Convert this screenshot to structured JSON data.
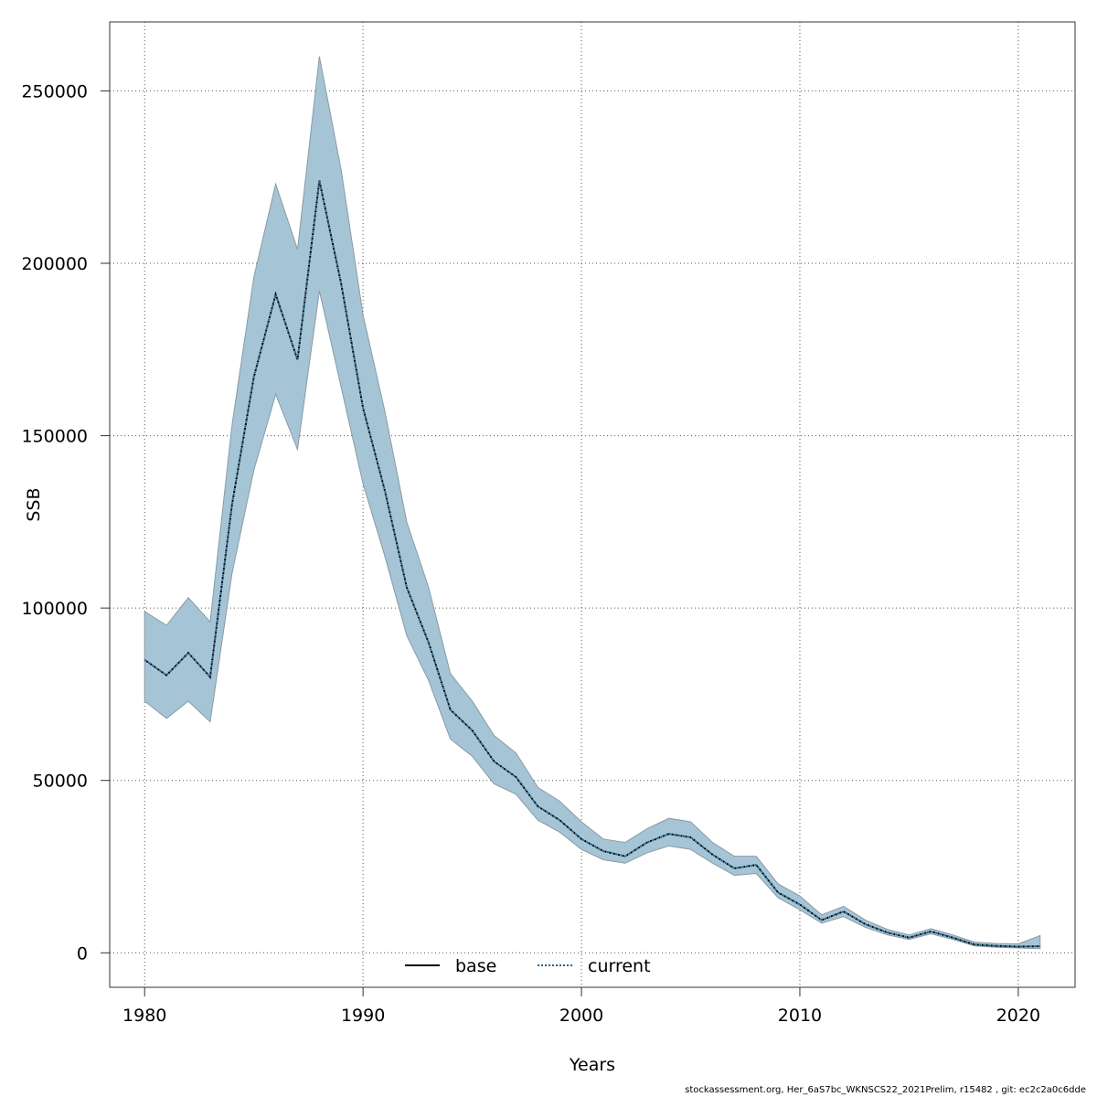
{
  "chart_data": {
    "type": "line",
    "title": "",
    "xlabel": "Years",
    "ylabel": "SSB",
    "xlim": [
      1978.4,
      2022.6
    ],
    "ylim": [
      -10000,
      270000
    ],
    "x_ticks": [
      1980,
      1990,
      2000,
      2010,
      2020
    ],
    "y_ticks": [
      0,
      50000,
      100000,
      150000,
      200000,
      250000
    ],
    "grid": true,
    "legend_position": "bottom-center",
    "colors": {
      "band": "#a5c5d6",
      "band_edge": "#8a9aa4",
      "base": "#000000",
      "current": "#1f5f8b"
    },
    "x": [
      1980,
      1981,
      1982,
      1983,
      1984,
      1985,
      1986,
      1987,
      1988,
      1989,
      1990,
      1991,
      1992,
      1993,
      1994,
      1995,
      1996,
      1997,
      1998,
      1999,
      2000,
      2001,
      2002,
      2003,
      2004,
      2005,
      2006,
      2007,
      2008,
      2009,
      2010,
      2011,
      2012,
      2013,
      2014,
      2015,
      2016,
      2017,
      2018,
      2019,
      2020,
      2021
    ],
    "band": {
      "upper": [
        99000,
        95000,
        103000,
        96000,
        153000,
        196000,
        223000,
        204000,
        260000,
        227000,
        185000,
        157000,
        125000,
        106000,
        81000,
        73000,
        63000,
        58000,
        48000,
        44000,
        38000,
        33000,
        32000,
        36000,
        39000,
        38000,
        32000,
        28000,
        28000,
        20000,
        16500,
        11000,
        13500,
        9500,
        6800,
        5200,
        7000,
        5200,
        3100,
        2700,
        2600,
        5000
      ],
      "lower": [
        73000,
        68000,
        73000,
        67000,
        110000,
        140000,
        162000,
        146000,
        192000,
        164000,
        136000,
        115000,
        92000,
        79000,
        62000,
        57000,
        49000,
        46000,
        38500,
        35000,
        30000,
        27000,
        26000,
        29000,
        31000,
        30000,
        26000,
        22500,
        23000,
        16000,
        12500,
        8600,
        10500,
        7400,
        5200,
        3900,
        5500,
        3900,
        2000,
        1600,
        1400,
        1200
      ]
    },
    "series": [
      {
        "name": "base",
        "style": "solid",
        "values": [
          85000,
          80500,
          87000,
          80000,
          130000,
          167000,
          191000,
          172000,
          224000,
          194000,
          158000,
          134000,
          106000,
          90000,
          70500,
          64500,
          55500,
          51000,
          42500,
          38500,
          33000,
          29500,
          28000,
          32000,
          34500,
          33500,
          28500,
          24500,
          25500,
          17500,
          14000,
          9500,
          12000,
          8300,
          5900,
          4400,
          6200,
          4400,
          2400,
          2000,
          1800,
          1900
        ]
      },
      {
        "name": "current",
        "style": "dotted",
        "values": [
          85000,
          80500,
          87000,
          80000,
          130000,
          167000,
          191000,
          172000,
          224000,
          194000,
          158000,
          134000,
          106000,
          90000,
          70500,
          64500,
          55500,
          51000,
          42500,
          38500,
          33000,
          29500,
          28000,
          32000,
          34500,
          33500,
          28500,
          24500,
          25500,
          17500,
          14000,
          9500,
          12000,
          8300,
          5900,
          4400,
          6200,
          4400,
          2400,
          2000,
          1800,
          1900
        ]
      }
    ]
  },
  "footer": "stockassessment.org, Her_6aS7bc_WKNSCS22_2021Prelim, r15482 , git: ec2c2a0c6dde"
}
